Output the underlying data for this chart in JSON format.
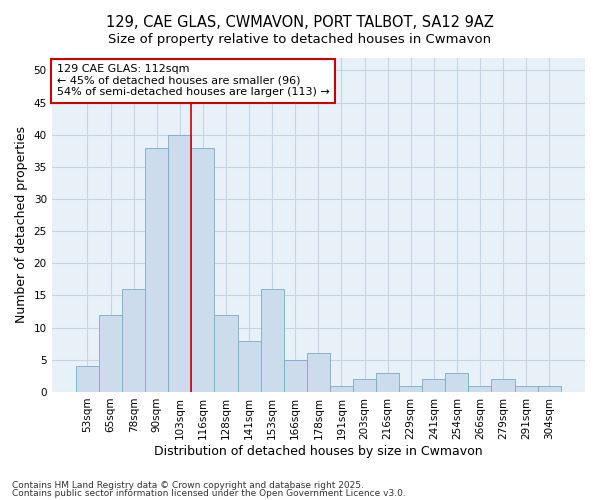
{
  "title1": "129, CAE GLAS, CWMAVON, PORT TALBOT, SA12 9AZ",
  "title2": "Size of property relative to detached houses in Cwmavon",
  "xlabel": "Distribution of detached houses by size in Cwmavon",
  "ylabel": "Number of detached properties",
  "categories": [
    "53sqm",
    "65sqm",
    "78sqm",
    "90sqm",
    "103sqm",
    "116sqm",
    "128sqm",
    "141sqm",
    "153sqm",
    "166sqm",
    "178sqm",
    "191sqm",
    "203sqm",
    "216sqm",
    "229sqm",
    "241sqm",
    "254sqm",
    "266sqm",
    "279sqm",
    "291sqm",
    "304sqm"
  ],
  "values": [
    4,
    12,
    16,
    38,
    40,
    38,
    12,
    8,
    16,
    5,
    6,
    1,
    2,
    3,
    1,
    2,
    3,
    1,
    2,
    1,
    1
  ],
  "bar_color": "#ccdcec",
  "bar_edge_color": "#7aaac8",
  "vline_x": 4.5,
  "vline_color": "#cc0000",
  "annotation_text": "129 CAE GLAS: 112sqm\n← 45% of detached houses are smaller (96)\n54% of semi-detached houses are larger (113) →",
  "annotation_box_facecolor": "white",
  "annotation_box_edgecolor": "#cc0000",
  "ylim": [
    0,
    52
  ],
  "yticks": [
    0,
    5,
    10,
    15,
    20,
    25,
    30,
    35,
    40,
    45,
    50
  ],
  "grid_color": "#c5d5e5",
  "bg_color": "#ffffff",
  "plot_bg_color": "#e8f0f8",
  "footer1": "Contains HM Land Registry data © Crown copyright and database right 2025.",
  "footer2": "Contains public sector information licensed under the Open Government Licence v3.0.",
  "title_fontsize": 10.5,
  "subtitle_fontsize": 9.5,
  "axis_label_fontsize": 9,
  "tick_fontsize": 7.5,
  "annotation_fontsize": 8,
  "footer_fontsize": 6.5
}
